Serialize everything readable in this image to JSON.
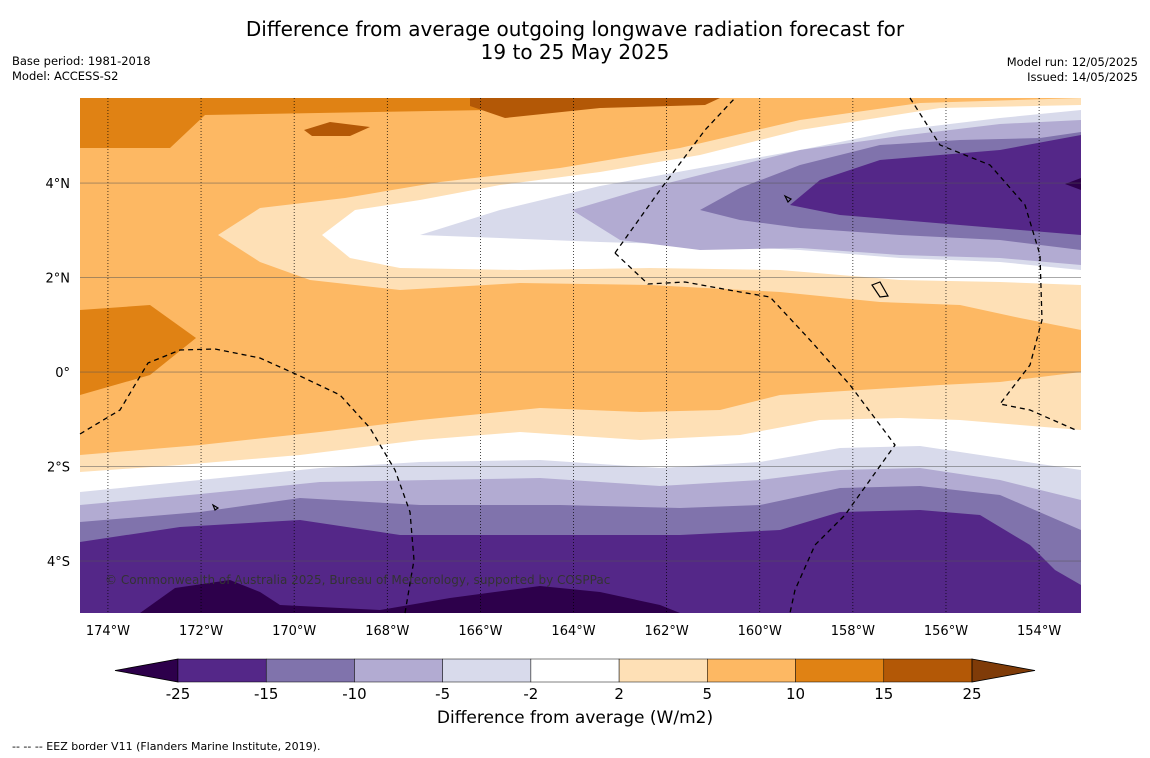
{
  "title": {
    "line1": "Difference from average outgoing longwave radiation forecast for",
    "line2": "19 to 25 May 2025"
  },
  "meta_left": {
    "base_period": "Base period: 1981-2018",
    "model": "Model: ACCESS-S2"
  },
  "meta_right": {
    "model_run": "Model run: 12/05/2025",
    "issued": "Issued: 14/05/2025"
  },
  "map": {
    "lat_labels": [
      "4°N",
      "2°N",
      "0°",
      "2°S",
      "4°S"
    ],
    "lat_values": [
      4,
      2,
      0,
      -2,
      -4
    ],
    "lon_labels": [
      "174°W",
      "172°W",
      "170°W",
      "168°W",
      "166°W",
      "164°W",
      "162°W",
      "160°W",
      "158°W",
      "156°W",
      "154°W"
    ],
    "lon_values": [
      -174,
      -172,
      -170,
      -168,
      -166,
      -164,
      -162,
      -160,
      -158,
      -156,
      -154
    ],
    "lon_range": [
      -174.6,
      -153.1
    ],
    "lat_range": [
      -5.1,
      5.8
    ],
    "copyright": "© Commonwealth of Australia 2025, Bureau of Meteorology, supported by COSPPac"
  },
  "colorbar": {
    "title": "Difference from average (W/m2)",
    "ticks": [
      "-25",
      "-15",
      "-10",
      "-5",
      "-2",
      "2",
      "5",
      "10",
      "15",
      "25"
    ],
    "colors": [
      "#2d004b",
      "#542788",
      "#8073ac",
      "#b2abd2",
      "#d8daeb",
      "#ffffff",
      "#fee0b6",
      "#fdb863",
      "#e08214",
      "#b35806",
      "#7f3b08"
    ]
  },
  "footer": "-- -- -- EEZ border V11 (Flanders Marine Institute, 2019)."
}
